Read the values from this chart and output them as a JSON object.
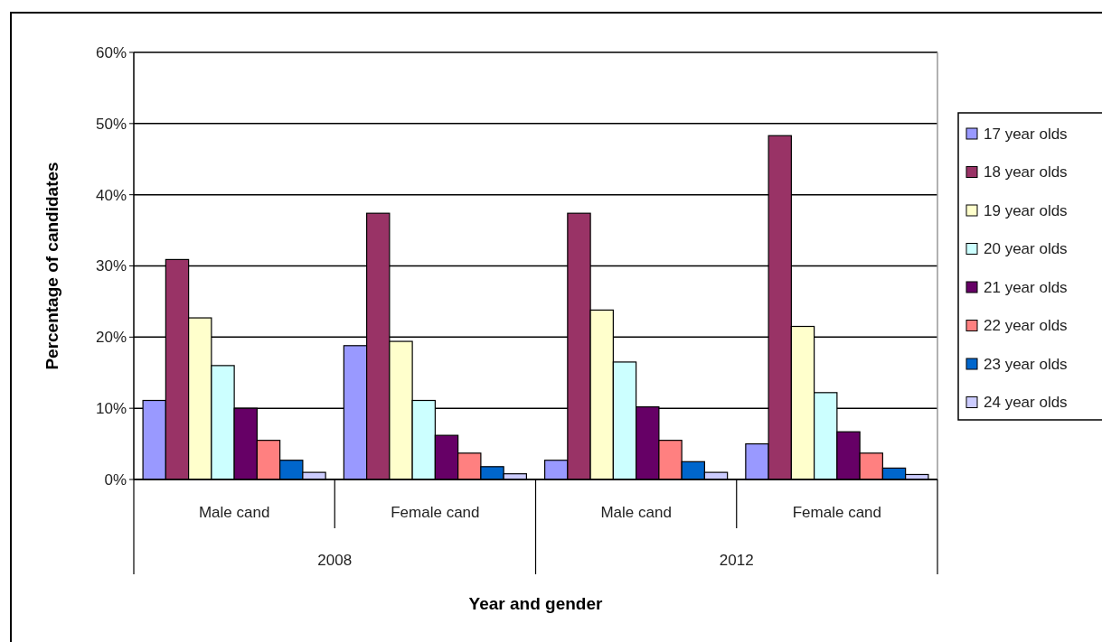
{
  "chart_data": {
    "type": "bar",
    "xlabel": "Year and gender",
    "ylabel": "Percentage of candidates",
    "categories": [
      "Male cand",
      "Female cand",
      "Male cand",
      "Female cand"
    ],
    "annotations": [
      "2008",
      "2012"
    ],
    "ylim": [
      0,
      60
    ],
    "yticks": [
      {
        "value": 0,
        "label": "0%"
      },
      {
        "value": 10,
        "label": "10%"
      },
      {
        "value": 20,
        "label": "20%"
      },
      {
        "value": 30,
        "label": "30%"
      },
      {
        "value": 40,
        "label": "40%"
      },
      {
        "value": 50,
        "label": "50%"
      },
      {
        "value": 60,
        "label": "60%"
      }
    ],
    "grid": "y",
    "legend": "right",
    "series": [
      {
        "name": "17 year olds",
        "color": "#9999ff",
        "values": [
          11.1,
          18.8,
          2.7,
          5.0
        ]
      },
      {
        "name": "18 year olds",
        "color": "#993366",
        "values": [
          30.9,
          37.4,
          37.4,
          48.3
        ]
      },
      {
        "name": "19 year olds",
        "color": "#ffffcc",
        "values": [
          22.7,
          19.4,
          23.8,
          21.5
        ]
      },
      {
        "name": "20 year olds",
        "color": "#ccffff",
        "values": [
          16.0,
          11.1,
          16.5,
          12.2
        ]
      },
      {
        "name": "21 year olds",
        "color": "#660066",
        "values": [
          10.0,
          6.2,
          10.2,
          6.7
        ]
      },
      {
        "name": "22 year olds",
        "color": "#ff8080",
        "values": [
          5.5,
          3.7,
          5.5,
          3.7
        ]
      },
      {
        "name": "23 year olds",
        "color": "#0066cc",
        "values": [
          2.7,
          1.8,
          2.5,
          1.6
        ]
      },
      {
        "name": "24 year olds",
        "color": "#ccccff",
        "values": [
          1.0,
          0.8,
          1.0,
          0.7
        ]
      }
    ]
  }
}
